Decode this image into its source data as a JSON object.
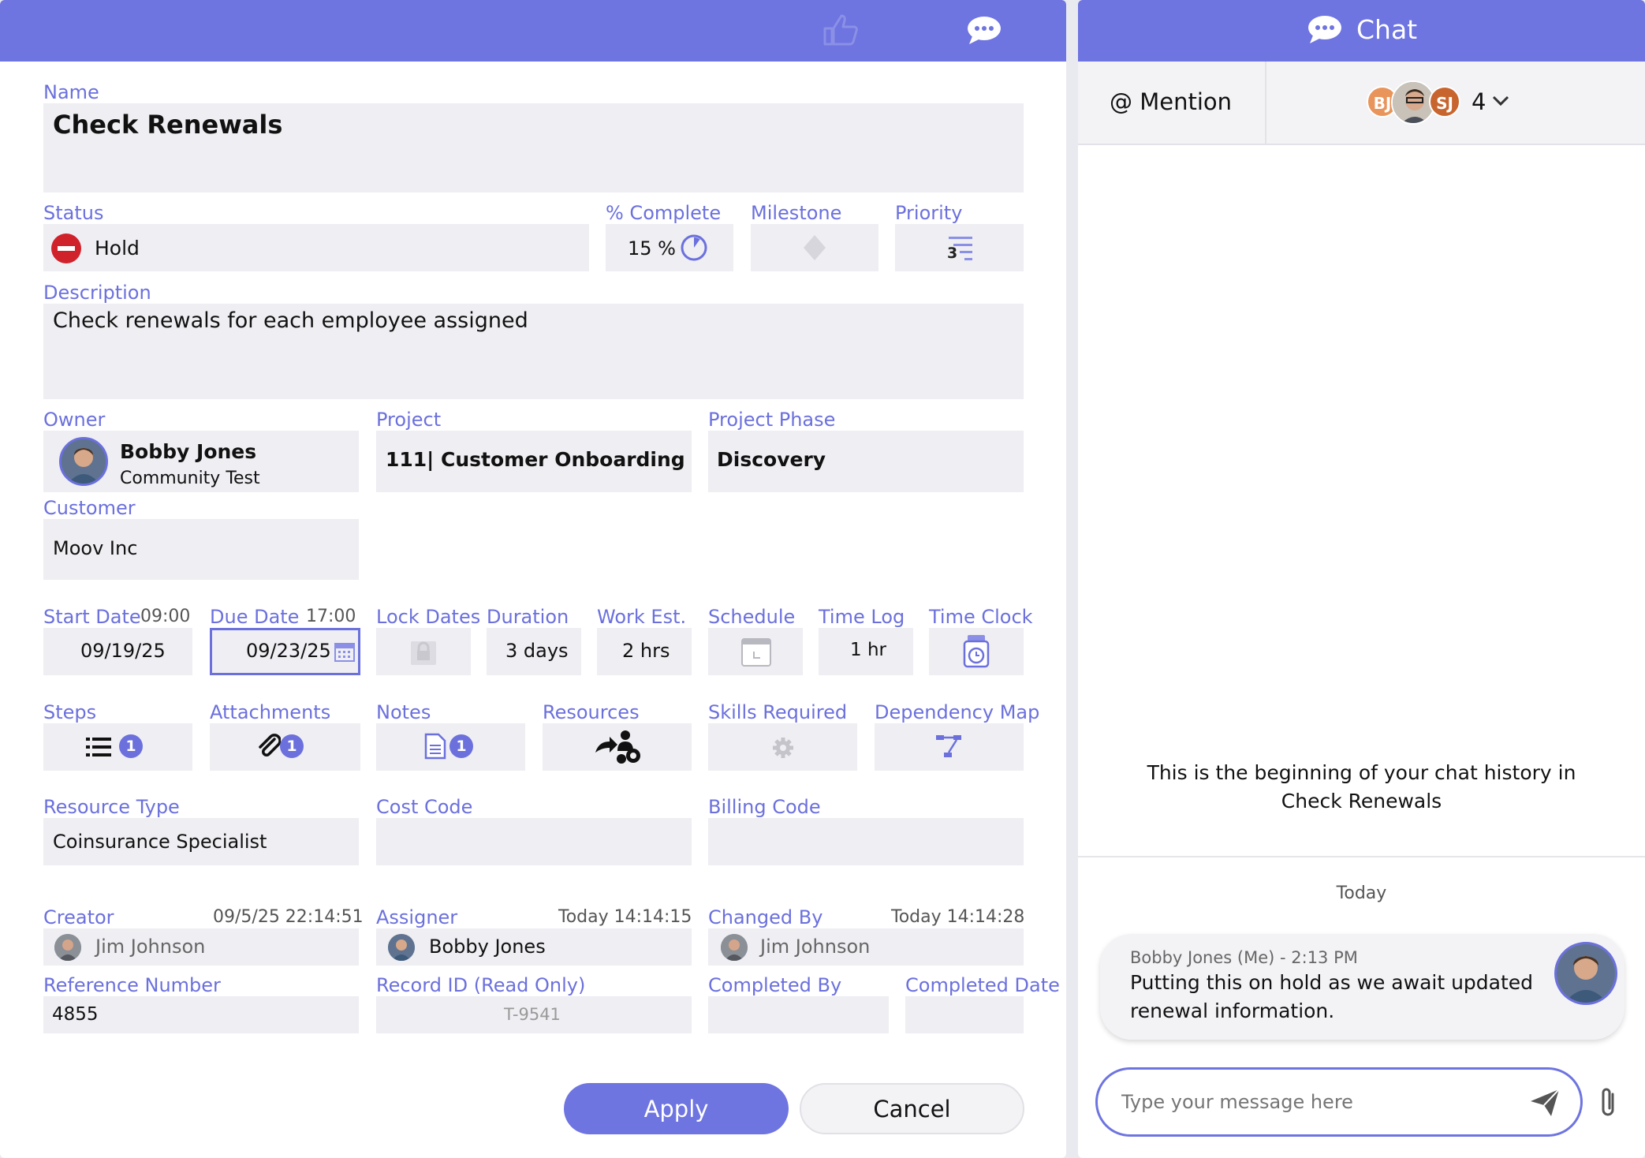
{
  "form": {
    "name_label": "Name",
    "name_value": "Check Renewals",
    "status_label": "Status",
    "status_value": "Hold",
    "complete_label": "% Complete",
    "complete_value": "15 %",
    "milestone_label": "Milestone",
    "priority_label": "Priority",
    "priority_value": "3",
    "description_label": "Description",
    "description_value": "Check renewals for each employee assigned",
    "owner_label": "Owner",
    "owner_name": "Bobby Jones",
    "owner_sub": "Community Test",
    "project_label": "Project",
    "project_value": "111| Customer Onboarding",
    "phase_label": "Project Phase",
    "phase_value": "Discovery",
    "customer_label": "Customer",
    "customer_value": "Moov Inc",
    "start_label": "Start Date",
    "start_time": "09:00",
    "start_value": "09/19/25",
    "due_label": "Due Date",
    "due_time": "17:00",
    "due_value": "09/23/25",
    "lock_label": "Lock Dates",
    "duration_label": "Duration",
    "duration_value": "3 days",
    "work_label": "Work Est.",
    "work_value": "2 hrs",
    "schedule_label": "Schedule",
    "timelog_label": "Time Log",
    "timelog_value": "1 hr",
    "timeclock_label": "Time Clock",
    "steps_label": "Steps",
    "steps_count": "1",
    "attachments_label": "Attachments",
    "attachments_count": "1",
    "notes_label": "Notes",
    "notes_count": "1",
    "resources_label": "Resources",
    "skills_label": "Skills Required",
    "dependency_label": "Dependency Map",
    "resource_type_label": "Resource Type",
    "resource_type_value": "Coinsurance Specialist",
    "cost_code_label": "Cost Code",
    "billing_code_label": "Billing Code",
    "creator_label": "Creator",
    "creator_time": "09/5/25  22:14:51",
    "creator_value": "Jim Johnson",
    "assigner_label": "Assigner",
    "assigner_time": "Today  14:14:15",
    "assigner_value": "Bobby Jones",
    "changed_label": "Changed By",
    "changed_time": "Today  14:14:28",
    "changed_value": "Jim Johnson",
    "refnum_label": "Reference Number",
    "refnum_value": "4855",
    "recordid_label": "Record ID (Read Only)",
    "recordid_value": "T-9541",
    "completed_by_label": "Completed By",
    "completed_date_label": "Completed Date",
    "apply_label": "Apply",
    "cancel_label": "Cancel"
  },
  "chat": {
    "title": "Chat",
    "mention_label": "@ Mention",
    "participants": [
      "BJ",
      "SJ"
    ],
    "participant_count": "4",
    "history_text": "This is the beginning of your chat history in Check Renewals",
    "day_label": "Today",
    "message_meta": "Bobby Jones (Me) - 2:13 PM",
    "message_text": "Putting this on hold as we await updated renewal information.",
    "input_placeholder": "Type your message here"
  },
  "colors": {
    "accent": "#6e74e0",
    "label": "#6b70dd",
    "field_bg": "#eeeef3",
    "status_red": "#d0222b",
    "initials_bj": "#e8945a",
    "initials_sj": "#c8652e"
  },
  "icons": [
    "thumbs-up-icon",
    "comment-icon",
    "hold-icon",
    "progress-pie-icon",
    "milestone-diamond-icon",
    "priority-icon",
    "calendar-icon",
    "lock-icon",
    "schedule-icon",
    "time-clock-icon",
    "list-icon",
    "paperclip-icon",
    "note-icon",
    "resources-icon",
    "gear-icon",
    "dependency-icon",
    "chevron-down-icon",
    "send-icon",
    "attach-icon"
  ]
}
